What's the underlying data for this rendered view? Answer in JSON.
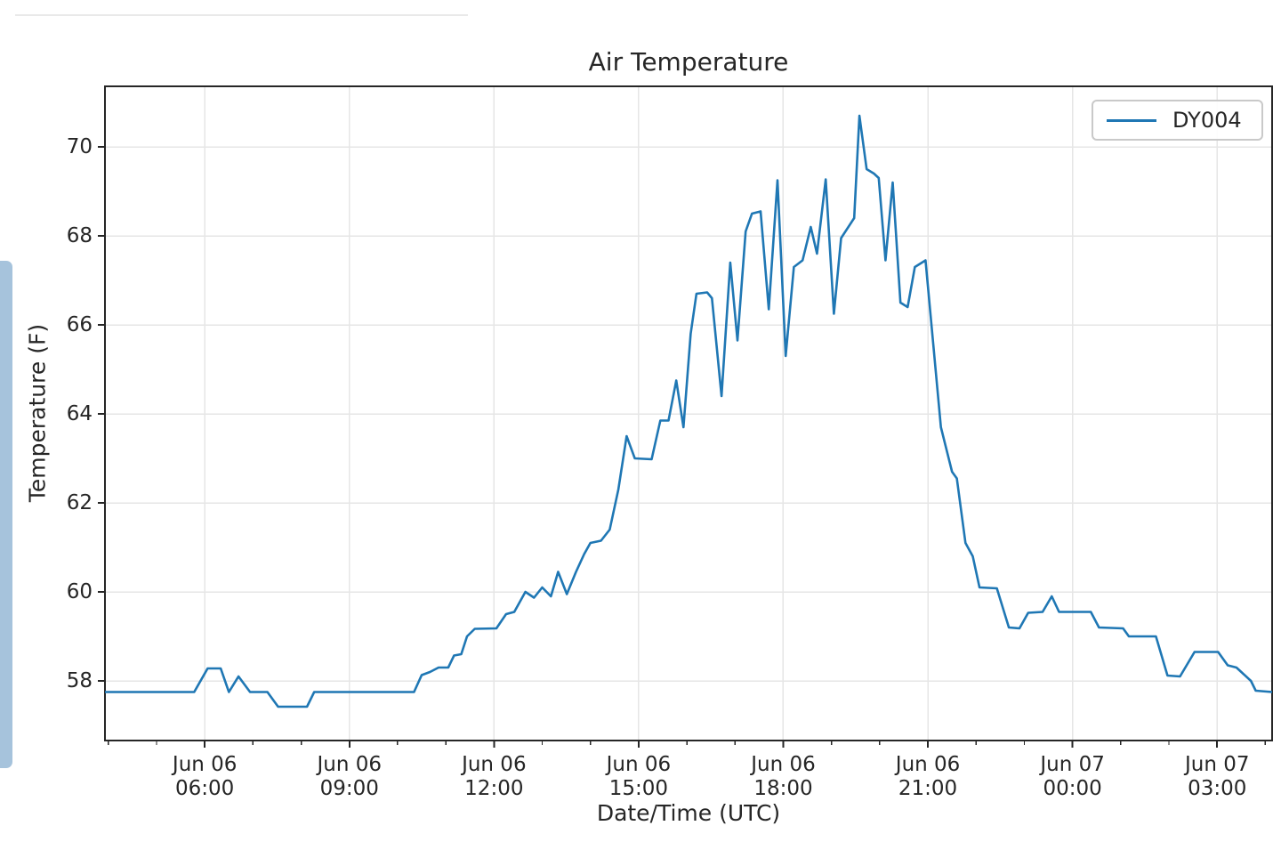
{
  "decor": {
    "divider_color": "#e9e9e9",
    "scrollbar_color": "#a6c3dc"
  },
  "chart_data": {
    "type": "line",
    "title": "Air Temperature",
    "xlabel": "Date/Time (UTC)",
    "ylabel": "Temperature (F)",
    "x_unit": "hours since Jun 06 00:00 UTC",
    "xlim": [
      3.93,
      28.14
    ],
    "ylim": [
      56.66,
      71.36
    ],
    "grid": true,
    "legend_position": "upper right",
    "axis_color": "#262626",
    "grid_color": "#e6e6e6",
    "y_ticks": [
      58,
      60,
      62,
      64,
      66,
      68,
      70
    ],
    "x_ticks": [
      {
        "t": 6,
        "label": [
          "Jun 06",
          "06:00"
        ]
      },
      {
        "t": 9,
        "label": [
          "Jun 06",
          "09:00"
        ]
      },
      {
        "t": 12,
        "label": [
          "Jun 06",
          "12:00"
        ]
      },
      {
        "t": 15,
        "label": [
          "Jun 06",
          "15:00"
        ]
      },
      {
        "t": 18,
        "label": [
          "Jun 06",
          "18:00"
        ]
      },
      {
        "t": 21,
        "label": [
          "Jun 06",
          "21:00"
        ]
      },
      {
        "t": 24,
        "label": [
          "Jun 07",
          "00:00"
        ]
      },
      {
        "t": 27,
        "label": [
          "Jun 07",
          "03:00"
        ]
      }
    ],
    "x_minor_tick_interval_hours": 1,
    "series": [
      {
        "name": "DY004",
        "color": "#1f77b4",
        "points": [
          [
            3.93,
            57.75
          ],
          [
            5.78,
            57.75
          ],
          [
            6.06,
            58.28
          ],
          [
            6.33,
            58.28
          ],
          [
            6.5,
            57.75
          ],
          [
            6.7,
            58.1
          ],
          [
            6.94,
            57.75
          ],
          [
            7.3,
            57.75
          ],
          [
            7.52,
            57.42
          ],
          [
            8.12,
            57.42
          ],
          [
            8.27,
            57.75
          ],
          [
            10.34,
            57.75
          ],
          [
            10.5,
            58.13
          ],
          [
            10.67,
            58.2
          ],
          [
            10.85,
            58.3
          ],
          [
            11.05,
            58.3
          ],
          [
            11.17,
            58.57
          ],
          [
            11.32,
            58.6
          ],
          [
            11.44,
            59.0
          ],
          [
            11.6,
            59.17
          ],
          [
            12.05,
            59.18
          ],
          [
            12.25,
            59.5
          ],
          [
            12.42,
            59.55
          ],
          [
            12.65,
            60.0
          ],
          [
            12.83,
            59.87
          ],
          [
            13.0,
            60.1
          ],
          [
            13.18,
            59.9
          ],
          [
            13.33,
            60.45
          ],
          [
            13.51,
            59.95
          ],
          [
            13.7,
            60.45
          ],
          [
            13.87,
            60.85
          ],
          [
            14.0,
            61.1
          ],
          [
            14.22,
            61.15
          ],
          [
            14.4,
            61.4
          ],
          [
            14.58,
            62.3
          ],
          [
            14.75,
            63.5
          ],
          [
            14.92,
            63.0
          ],
          [
            15.27,
            62.98
          ],
          [
            15.45,
            63.85
          ],
          [
            15.62,
            63.85
          ],
          [
            15.78,
            64.75
          ],
          [
            15.93,
            63.7
          ],
          [
            16.08,
            65.8
          ],
          [
            16.2,
            66.7
          ],
          [
            16.42,
            66.73
          ],
          [
            16.52,
            66.6
          ],
          [
            16.72,
            64.4
          ],
          [
            16.9,
            67.4
          ],
          [
            17.05,
            65.65
          ],
          [
            17.22,
            68.1
          ],
          [
            17.35,
            68.5
          ],
          [
            17.53,
            68.55
          ],
          [
            17.7,
            66.35
          ],
          [
            17.88,
            69.25
          ],
          [
            18.05,
            65.3
          ],
          [
            18.22,
            67.3
          ],
          [
            18.4,
            67.45
          ],
          [
            18.57,
            68.2
          ],
          [
            18.7,
            67.6
          ],
          [
            18.88,
            69.27
          ],
          [
            19.05,
            66.25
          ],
          [
            19.2,
            67.95
          ],
          [
            19.47,
            68.4
          ],
          [
            19.58,
            70.7
          ],
          [
            19.73,
            69.5
          ],
          [
            19.88,
            69.4
          ],
          [
            19.98,
            69.3
          ],
          [
            20.12,
            67.45
          ],
          [
            20.27,
            69.2
          ],
          [
            20.43,
            66.5
          ],
          [
            20.58,
            66.4
          ],
          [
            20.73,
            67.3
          ],
          [
            20.95,
            67.45
          ],
          [
            21.27,
            63.7
          ],
          [
            21.5,
            62.7
          ],
          [
            21.6,
            62.55
          ],
          [
            21.78,
            61.1
          ],
          [
            21.93,
            60.8
          ],
          [
            22.07,
            60.1
          ],
          [
            22.43,
            60.08
          ],
          [
            22.68,
            59.2
          ],
          [
            22.9,
            59.18
          ],
          [
            23.08,
            59.53
          ],
          [
            23.38,
            59.55
          ],
          [
            23.57,
            59.9
          ],
          [
            23.72,
            59.55
          ],
          [
            24.38,
            59.55
          ],
          [
            24.55,
            59.2
          ],
          [
            25.05,
            59.18
          ],
          [
            25.17,
            59.0
          ],
          [
            25.73,
            59.0
          ],
          [
            25.97,
            58.12
          ],
          [
            26.23,
            58.1
          ],
          [
            26.53,
            58.65
          ],
          [
            27.02,
            58.65
          ],
          [
            27.22,
            58.35
          ],
          [
            27.4,
            58.3
          ],
          [
            27.7,
            58.0
          ],
          [
            27.8,
            57.78
          ],
          [
            28.14,
            57.75
          ]
        ]
      }
    ]
  }
}
